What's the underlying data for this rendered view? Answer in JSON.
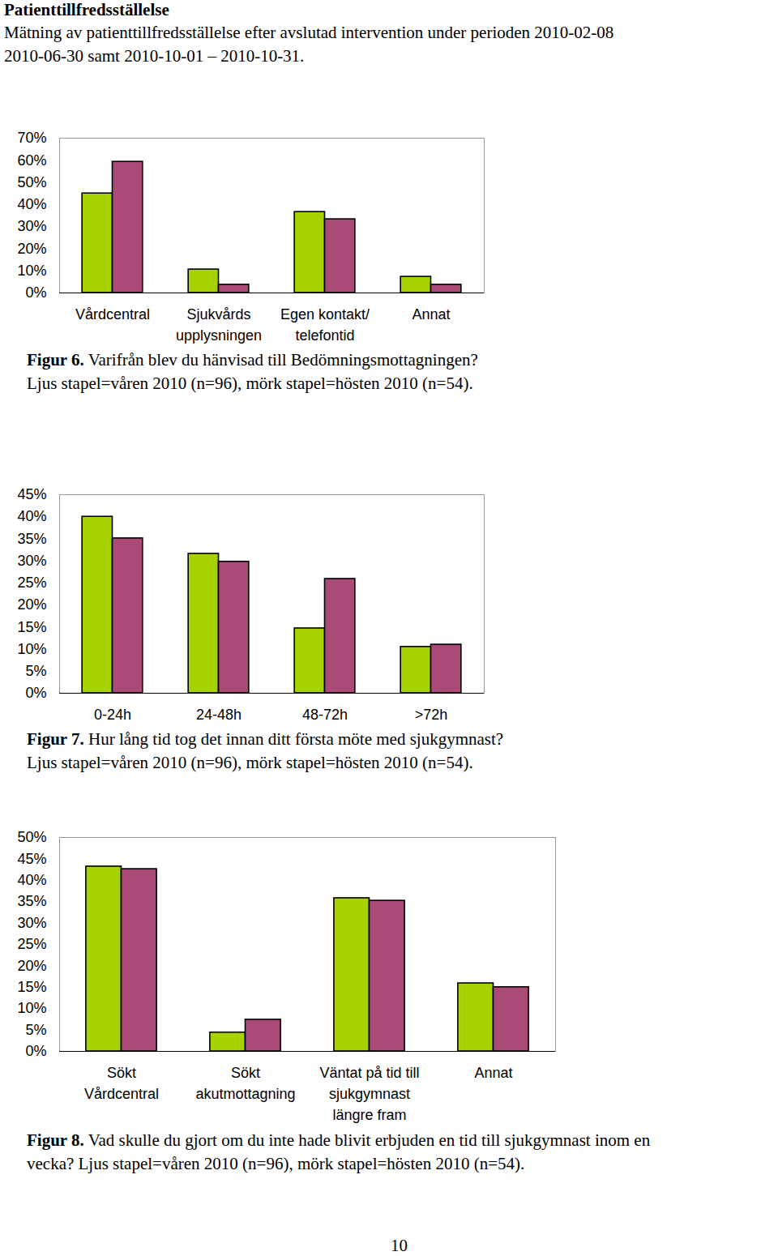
{
  "title": "Patienttillfredsställelse",
  "intro_lines": [
    "Mätning av patienttillfredsställelse efter avslutad intervention under perioden 2010-02-08",
    "2010-06-30 samt 2010-10-01 – 2010-10-31."
  ],
  "page_number": "10",
  "chart_data": [
    {
      "type": "bar",
      "figure_label": "Figur 6.",
      "caption_lines": [
        "Varifrån blev du hänvisad till Bedömningsmottagningen?",
        "Ljus stapel=våren 2010 (n=96), mörk stapel=hösten 2010 (n=54)."
      ],
      "categories": [
        "Vårdcentral",
        "Sjukvårds\nupplysningen",
        "Egen kontakt/\ntelefontid",
        "Annat"
      ],
      "series": [
        {
          "color": "#a6d300",
          "values": [
            45,
            10.6,
            36.6,
            7.3
          ]
        },
        {
          "color": "#aa4a76",
          "values": [
            59.3,
            3.7,
            33.3,
            3.7
          ]
        }
      ],
      "ylim": [
        0,
        70
      ],
      "yticks": [
        {
          "value": 0,
          "label": "0%"
        },
        {
          "value": 10,
          "label": "10%"
        },
        {
          "value": 20,
          "label": "20%"
        },
        {
          "value": 30,
          "label": "30%"
        },
        {
          "value": 40,
          "label": "40%"
        },
        {
          "value": 50,
          "label": "50%"
        },
        {
          "value": 60,
          "label": "60%"
        },
        {
          "value": 70,
          "label": "70%"
        }
      ],
      "grid": false,
      "data_labels": false
    },
    {
      "type": "bar",
      "figure_label": "Figur 7.",
      "caption_lines": [
        "Hur lång tid tog det innan ditt första möte med sjukgymnast?",
        "Ljus stapel=våren 2010 (n=96), mörk stapel=hösten 2010 (n=54)."
      ],
      "categories": [
        "0-24h",
        "24-48h",
        "48-72h",
        ">72h"
      ],
      "series": [
        {
          "color": "#a6d300",
          "values": [
            40,
            31.6,
            14.7,
            10.5
          ]
        },
        {
          "color": "#aa4a76",
          "values": [
            35.1,
            29.8,
            25.9,
            11
          ]
        }
      ],
      "ylim": [
        0,
        45
      ],
      "yticks": [
        {
          "value": 0,
          "label": "0%"
        },
        {
          "value": 5,
          "label": "5%"
        },
        {
          "value": 10,
          "label": "10%"
        },
        {
          "value": 15,
          "label": "15%"
        },
        {
          "value": 20,
          "label": "20%"
        },
        {
          "value": 25,
          "label": "25%"
        },
        {
          "value": 30,
          "label": "30%"
        },
        {
          "value": 35,
          "label": "35%"
        },
        {
          "value": 40,
          "label": "40%"
        },
        {
          "value": 45,
          "label": "45%"
        }
      ],
      "grid": false,
      "data_labels": false
    },
    {
      "type": "bar",
      "figure_label": "Figur 8.",
      "caption_lines": [
        "Vad skulle du gjort om du inte hade blivit erbjuden en tid till sjukgymnast inom en",
        "vecka? Ljus stapel=våren 2010 (n=96), mörk stapel=hösten 2010 (n=54)."
      ],
      "categories": [
        "Sökt\nVårdcentral",
        "Sökt\nakutmottagning",
        "Väntat på tid till\nsjukgymnast\nlängre fram",
        "Annat"
      ],
      "series": [
        {
          "color": "#a6d300",
          "values": [
            43.2,
            4.4,
            35.8,
            15.9
          ]
        },
        {
          "color": "#aa4a76",
          "values": [
            42.6,
            7.4,
            35.2,
            15
          ]
        }
      ],
      "ylim": [
        0,
        50
      ],
      "yticks": [
        {
          "value": 0,
          "label": "0%"
        },
        {
          "value": 5,
          "label": "5%"
        },
        {
          "value": 10,
          "label": "10%"
        },
        {
          "value": 15,
          "label": "15%"
        },
        {
          "value": 20,
          "label": "20%"
        },
        {
          "value": 25,
          "label": "25%"
        },
        {
          "value": 30,
          "label": "30%"
        },
        {
          "value": 35,
          "label": "35%"
        },
        {
          "value": 40,
          "label": "40%"
        },
        {
          "value": 45,
          "label": "45%"
        },
        {
          "value": 50,
          "label": "50%"
        }
      ],
      "grid": false,
      "data_labels": false
    }
  ]
}
